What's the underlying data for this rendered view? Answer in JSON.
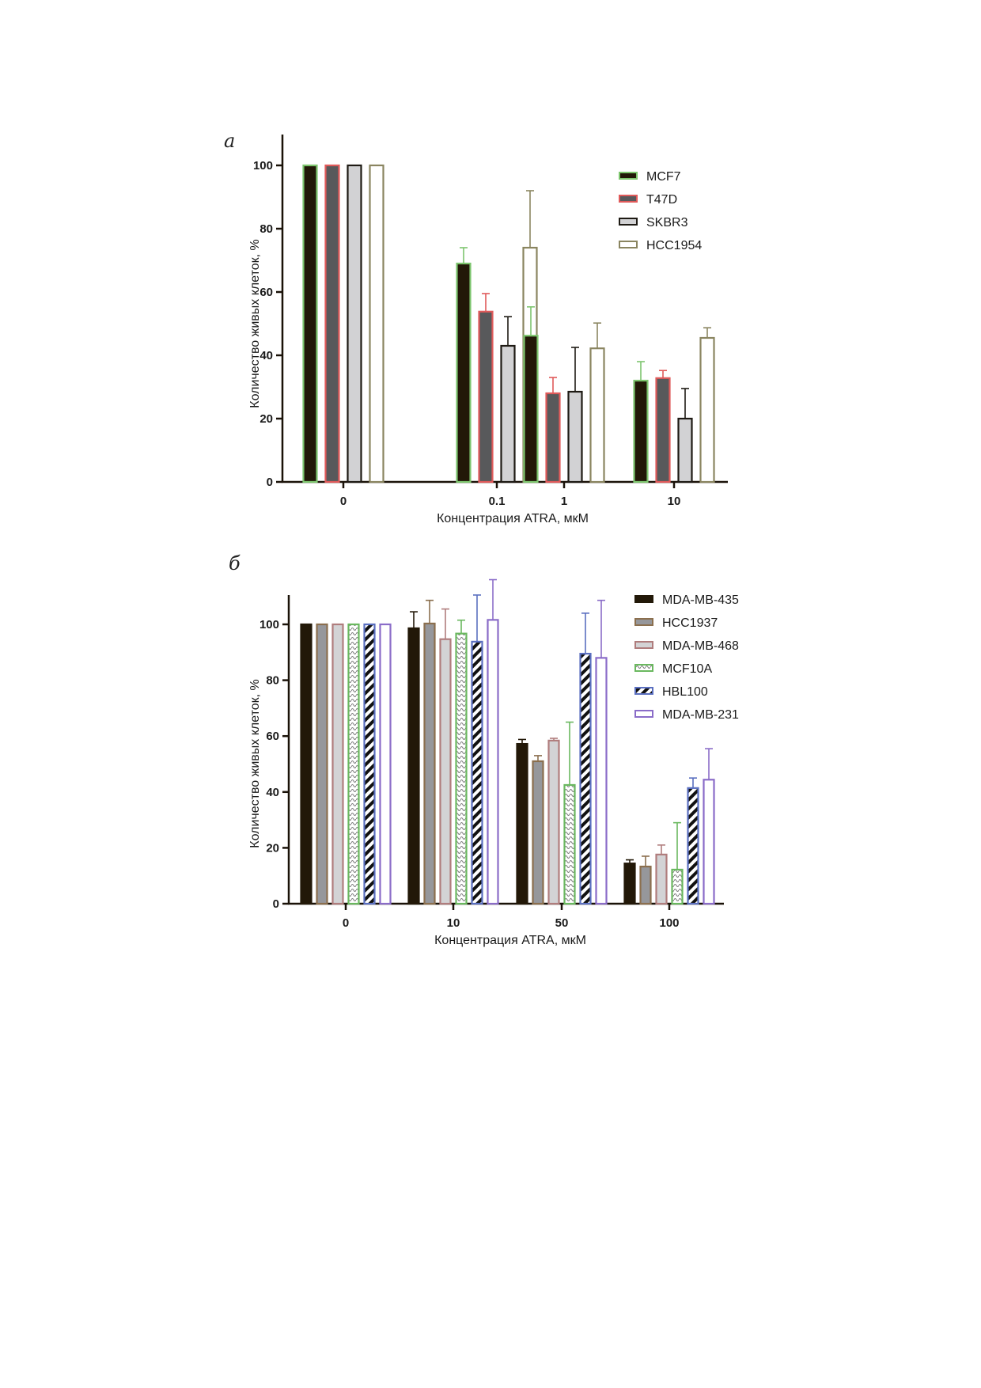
{
  "chart_data": [
    {
      "panel": "а",
      "type": "bar",
      "title": "",
      "xlabel": "Концентрация ATRA, мкМ",
      "ylabel": "Количество живых клеток, %",
      "ylim": [
        0,
        110
      ],
      "yticks": [
        0,
        20,
        40,
        60,
        80,
        100
      ],
      "categories": [
        "0",
        "0.1",
        "1",
        "10"
      ],
      "legend_position": "top-right",
      "series": [
        {
          "name": "MCF7",
          "fill": "#221808",
          "stroke": "#7dc56e",
          "pattern": "solid",
          "values": [
            100,
            69,
            46.2,
            32
          ],
          "error_upper": [
            100,
            74,
            55.3,
            38
          ]
        },
        {
          "name": "T47D",
          "fill": "#58595b",
          "stroke": "#e05a5a",
          "pattern": "solid",
          "values": [
            100,
            53.8,
            28,
            32.8
          ],
          "error_upper": [
            100,
            59.5,
            33,
            35.2
          ]
        },
        {
          "name": "SKBR3",
          "fill": "#d2d2d4",
          "stroke": "#1e1a14",
          "pattern": "solid",
          "values": [
            100,
            43,
            28.5,
            20
          ],
          "error_upper": [
            100,
            52.2,
            42.5,
            29.5
          ]
        },
        {
          "name": "HCC1954",
          "fill": "#ffffff",
          "stroke": "#8a8560",
          "pattern": "solid",
          "values": [
            100,
            74,
            42.2,
            45.5
          ],
          "error_upper": [
            100,
            92,
            50.2,
            48.7
          ]
        }
      ]
    },
    {
      "panel": "б",
      "type": "bar",
      "title": "",
      "xlabel": "Концентрация ATRA, мкМ",
      "ylabel": "Количество живых клеток, %",
      "ylim": [
        0,
        111
      ],
      "yticks": [
        0,
        20,
        40,
        60,
        80,
        100
      ],
      "categories": [
        "0",
        "10",
        "50",
        "100"
      ],
      "legend_position": "top-right",
      "series": [
        {
          "name": "MDA-MB-435",
          "fill": "#221808",
          "stroke": "#221808",
          "pattern": "solid",
          "values": [
            100,
            98.6,
            57.2,
            14.4
          ],
          "error_upper": [
            100,
            104.5,
            58.8,
            15.7
          ]
        },
        {
          "name": "HCC1937",
          "fill": "#96979b",
          "stroke": "#8b6f4e",
          "pattern": "solid",
          "values": [
            100,
            100.3,
            51,
            13.3
          ],
          "error_upper": [
            100,
            108.6,
            53,
            17
          ]
        },
        {
          "name": "MDA-MB-468",
          "fill": "#d3d3d5",
          "stroke": "#b07d7d",
          "pattern": "solid",
          "values": [
            100,
            94.7,
            58.4,
            17.6
          ],
          "error_upper": [
            100,
            105.5,
            59.2,
            21
          ]
        },
        {
          "name": "MCF10A",
          "fill": "#ffffff",
          "stroke": "#6ab85f",
          "pattern": "dots",
          "values": [
            100,
            96.7,
            42.5,
            12.2
          ],
          "error_upper": [
            100,
            101.5,
            65,
            29
          ]
        },
        {
          "name": "HBL100",
          "fill": "#ffffff",
          "stroke": "#5a6fc0",
          "pattern": "stripes",
          "values": [
            100,
            93.8,
            89.5,
            41.4
          ],
          "error_upper": [
            100,
            110.5,
            104,
            45
          ]
        },
        {
          "name": "MDA-MB-231",
          "fill": "#ffffff",
          "stroke": "#8a6cc8",
          "pattern": "solid",
          "values": [
            100,
            101.6,
            88,
            44.4
          ],
          "error_upper": [
            100,
            116,
            108.6,
            55.5
          ]
        }
      ]
    }
  ]
}
